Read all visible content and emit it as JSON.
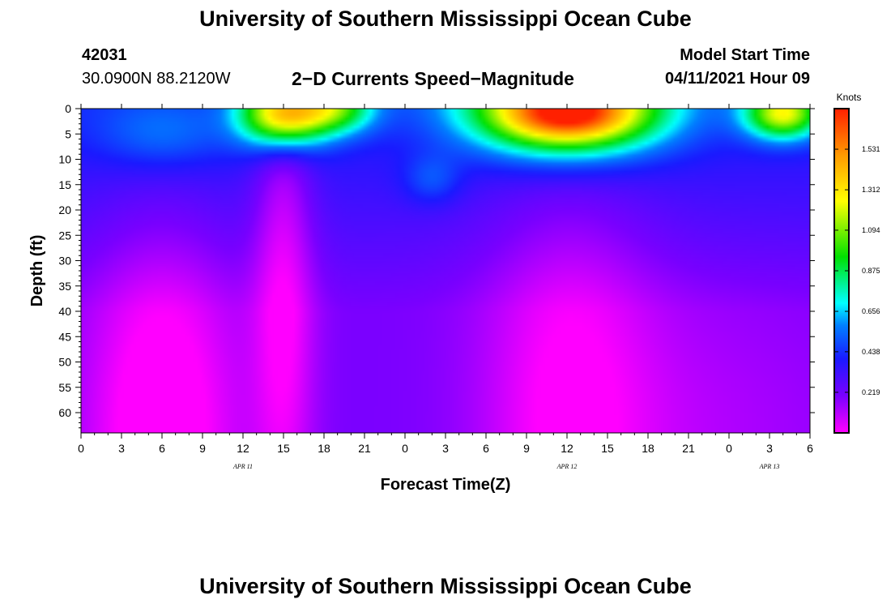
{
  "page": {
    "title_top": "University of Southern Mississippi Ocean Cube",
    "title_bottom": "University of Southern Mississippi Ocean Cube",
    "station_id": "42031",
    "coordinates": "30.0900N  88.2120W",
    "plot_title": "2−D Currents Speed−Magnitude",
    "model_start_label": "Model Start Time",
    "model_start_time": "04/11/2021 Hour 09"
  },
  "chart_data": {
    "type": "heatmap",
    "title": "2−D Currents Speed−Magnitude",
    "xlabel": "Forecast Time(Z)",
    "ylabel": "Depth (ft)",
    "x_tick_labels": [
      "0",
      "3",
      "6",
      "9",
      "12",
      "15",
      "18",
      "21",
      "0",
      "3",
      "6",
      "9",
      "12",
      "15",
      "18",
      "21",
      "0",
      "3",
      "6"
    ],
    "x_range_hours": [
      0,
      54
    ],
    "day_labels": [
      {
        "text": "APR  11",
        "hour": 12
      },
      {
        "text": "APR  12",
        "hour": 36
      },
      {
        "text": "APR  13",
        "hour": 51
      }
    ],
    "y_tick_labels": [
      "0",
      "5",
      "10",
      "15",
      "20",
      "25",
      "30",
      "35",
      "40",
      "45",
      "50",
      "55",
      "60"
    ],
    "y_range_ft": [
      0,
      64
    ],
    "colorbar": {
      "unit": "Knots",
      "range": [
        0,
        1.75
      ],
      "ticks": [
        "1.531",
        "1.312",
        "1.094",
        "0.875",
        "0.656",
        "0.438",
        "0.219"
      ],
      "tick_values": [
        1.531,
        1.312,
        1.094,
        0.875,
        0.656,
        0.438,
        0.219
      ],
      "colors": [
        {
          "v": 0.0,
          "c": "#ff00ff"
        },
        {
          "v": 0.2,
          "c": "#7a00ff"
        },
        {
          "v": 0.4,
          "c": "#1a1aff"
        },
        {
          "v": 0.58,
          "c": "#0080ff"
        },
        {
          "v": 0.7,
          "c": "#00ffff"
        },
        {
          "v": 0.95,
          "c": "#00e000"
        },
        {
          "v": 1.25,
          "c": "#ffff00"
        },
        {
          "v": 1.5,
          "c": "#ff9900"
        },
        {
          "v": 1.75,
          "c": "#ff2000"
        }
      ]
    },
    "features": [
      {
        "hour": 6,
        "depth": 5,
        "sx": 3.5,
        "sy": 5,
        "amp": 0.18
      },
      {
        "hour": 15,
        "depth": 1,
        "sx": 2.2,
        "sy": 4.5,
        "amp": 1.1
      },
      {
        "hour": 19,
        "depth": 0,
        "sx": 2.0,
        "sy": 3.5,
        "amp": 0.55
      },
      {
        "hour": 36,
        "depth": 0,
        "sx": 4.8,
        "sy": 6,
        "amp": 1.35
      },
      {
        "hour": 36,
        "depth": 2,
        "sx": 3.0,
        "sy": 3,
        "amp": 0.2
      },
      {
        "hour": 26,
        "depth": 14,
        "sx": 1.5,
        "sy": 3.5,
        "amp": 0.16
      },
      {
        "hour": 52,
        "depth": 1,
        "sx": 2.0,
        "sy": 3.5,
        "amp": 0.85
      },
      {
        "hour": 6,
        "depth": 64,
        "sx": 4.0,
        "sy": 28,
        "amp": -0.28
      },
      {
        "hour": 15,
        "depth": 30,
        "sx": 1.6,
        "sy": 40,
        "amp": -0.22
      },
      {
        "hour": 36,
        "depth": 60,
        "sx": 4.5,
        "sy": 35,
        "amp": -0.2
      },
      {
        "hour": 46,
        "depth": 64,
        "sx": 8.0,
        "sy": 22,
        "amp": -0.08
      }
    ],
    "background": {
      "surface": 0.42,
      "bottom": 0.2
    }
  }
}
